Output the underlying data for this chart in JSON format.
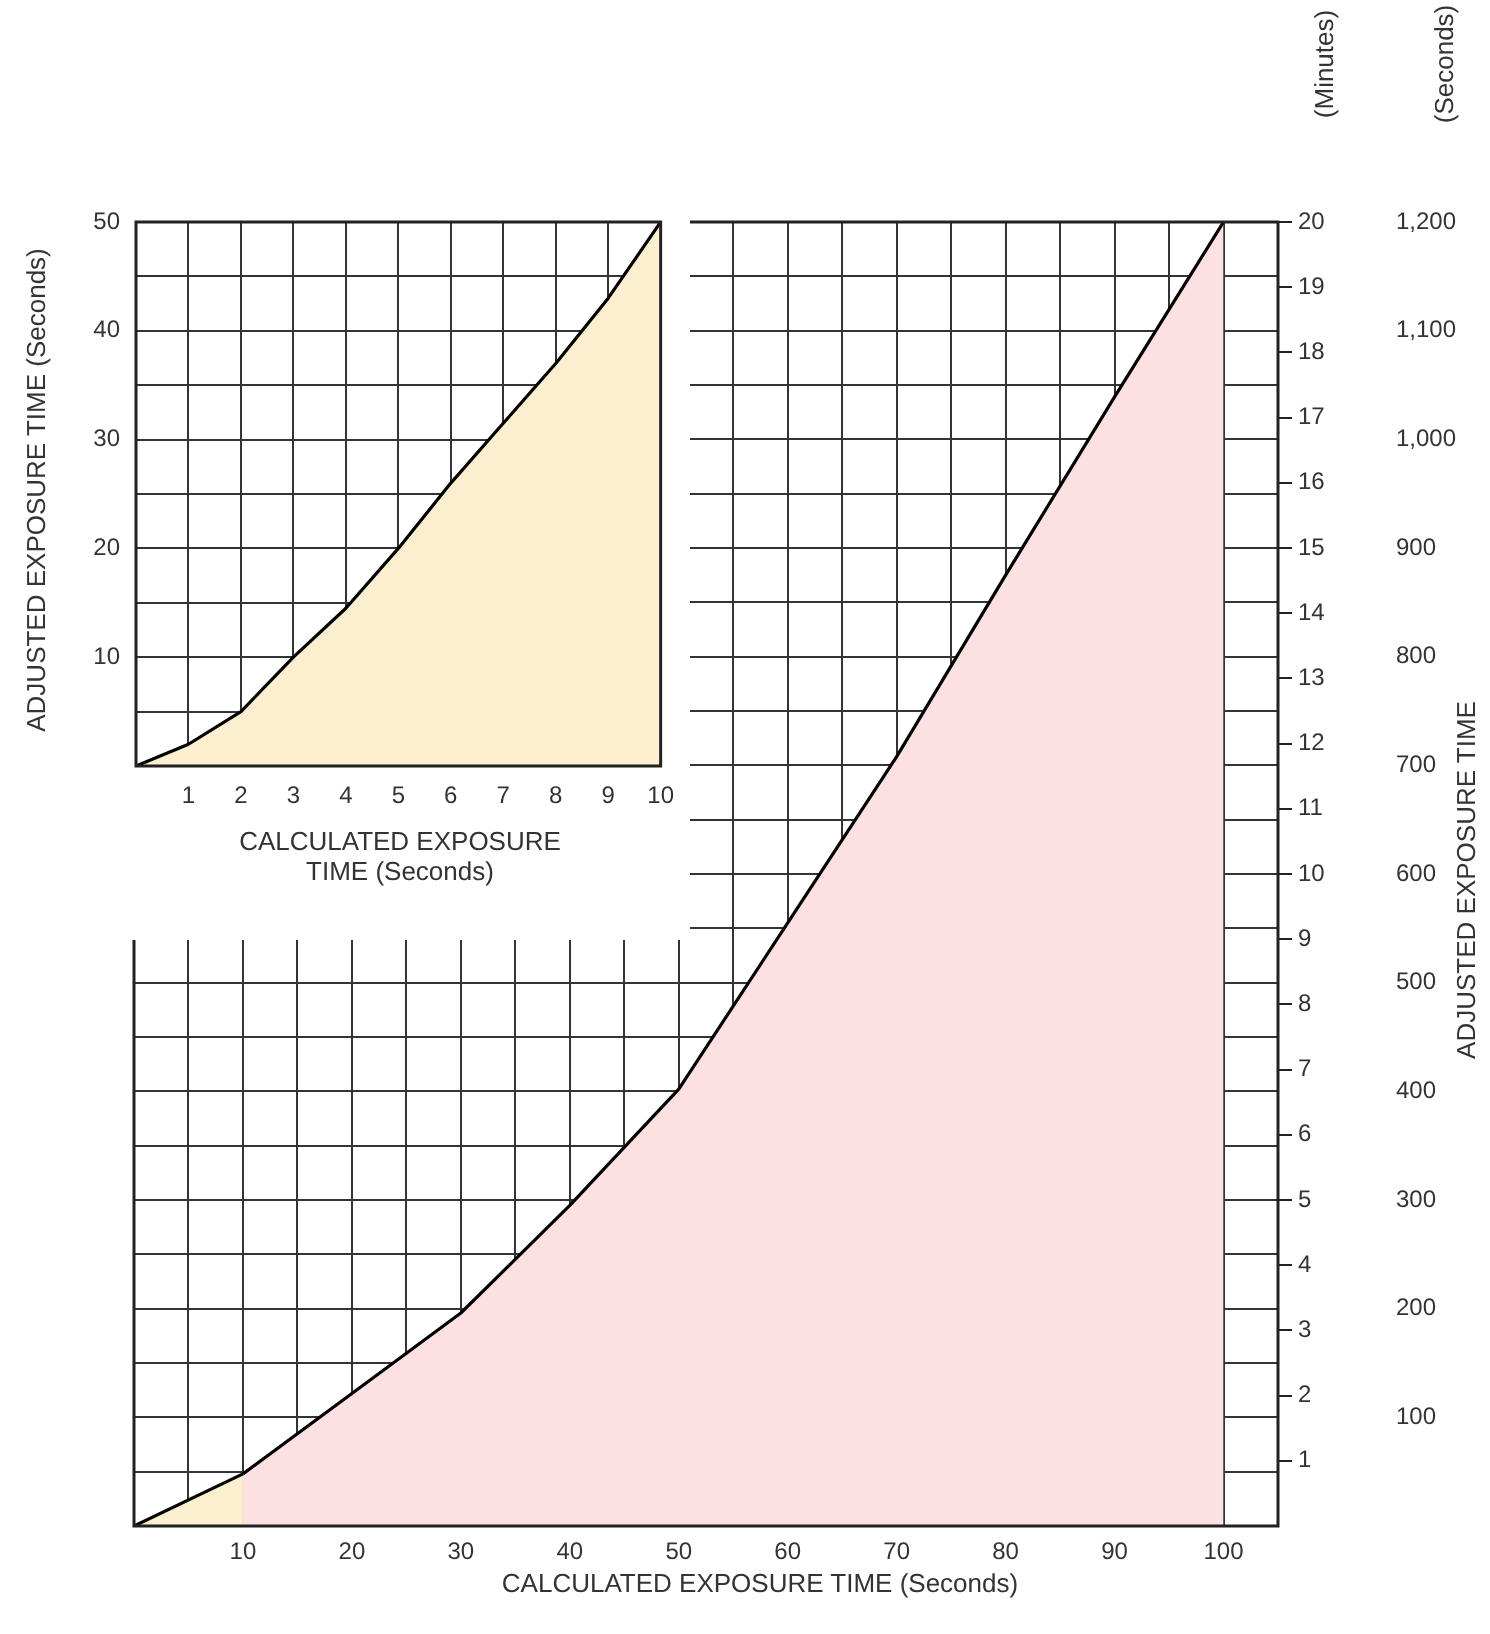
{
  "chart_data": [
    {
      "type": "area",
      "xlabel": "CALCULATED EXPOSURE TIME (Seconds)",
      "ylabel": "ADJUSTED EXPOSURE TIME",
      "annotations": [
        "(Minutes)",
        "(Seconds)"
      ],
      "series": [
        {
          "color": "#fbefd0",
          "x": [
            0,
            10
          ],
          "values": [
            0,
            48
          ]
        },
        {
          "color": "#fde0e0",
          "x": [
            10,
            20,
            30,
            40,
            50,
            60,
            70,
            80,
            90,
            100
          ],
          "values": [
            48,
            122,
            196,
            295,
            402,
            555,
            708,
            875,
            1039,
            1200
          ]
        }
      ],
      "xlim": [
        0,
        105
      ],
      "xticks": [
        {
          "value": 5,
          "label": null
        },
        10,
        {
          "value": 15,
          "label": null
        },
        20,
        {
          "value": 25,
          "label": null
        },
        30,
        {
          "value": 35,
          "label": null
        },
        40,
        {
          "value": 45,
          "label": null
        },
        50,
        {
          "value": 55,
          "label": null
        },
        60,
        {
          "value": 65,
          "label": null
        },
        70,
        {
          "value": 75,
          "label": null
        },
        80,
        {
          "value": 85,
          "label": null
        },
        90,
        {
          "value": 95,
          "label": null
        },
        100
      ],
      "ylim": [
        0,
        1200
      ],
      "yticks": [
        {
          "value": 50,
          "label": null
        },
        100,
        {
          "value": 150,
          "label": null
        },
        200,
        {
          "value": 250,
          "label": null
        },
        300,
        {
          "value": 350,
          "label": null
        },
        400,
        {
          "value": 450,
          "label": null
        },
        500,
        {
          "value": 550,
          "label": null
        },
        600,
        {
          "value": 650,
          "label": null
        },
        700,
        {
          "value": 750,
          "label": null
        },
        800,
        {
          "value": 850,
          "label": null
        },
        900,
        {
          "value": 950,
          "label": null
        },
        {
          "value": 1000,
          "label": "1,000"
        },
        {
          "value": 1050,
          "label": null
        },
        {
          "value": 1100,
          "label": "1,100"
        },
        {
          "value": 1150,
          "label": null
        },
        {
          "value": 1200,
          "label": "1,200"
        }
      ],
      "y2lim": [
        0,
        20
      ],
      "y2ticks": [
        1,
        2,
        3,
        4,
        5,
        6,
        7,
        8,
        9,
        10,
        11,
        12,
        13,
        14,
        15,
        16,
        17,
        18,
        19,
        20
      ],
      "grid": true
    },
    {
      "type": "area",
      "xlabel": "CALCULATED EXPOSURE TIME (Seconds)",
      "ylabel": "ADJUSTED EXPOSURE TIME (Seconds)",
      "series": [
        {
          "color": "#fbefd0",
          "x": [
            0,
            1,
            2,
            3,
            4,
            5,
            6,
            7,
            8,
            9,
            10
          ],
          "values": [
            0,
            2,
            5,
            10,
            14.5,
            20,
            26,
            31.5,
            37,
            43,
            50
          ]
        }
      ],
      "xlim": [
        0,
        10
      ],
      "xticks": [
        1,
        2,
        3,
        4,
        5,
        6,
        7,
        8,
        9,
        10
      ],
      "ylim": [
        0,
        50
      ],
      "yticks": [
        {
          "value": 5,
          "label": null
        },
        10,
        {
          "value": 15,
          "label": null
        },
        20,
        {
          "value": 25,
          "label": null
        },
        30,
        {
          "value": 35,
          "label": null
        },
        40,
        {
          "value": 45,
          "label": null
        },
        50
      ],
      "grid": true
    }
  ]
}
